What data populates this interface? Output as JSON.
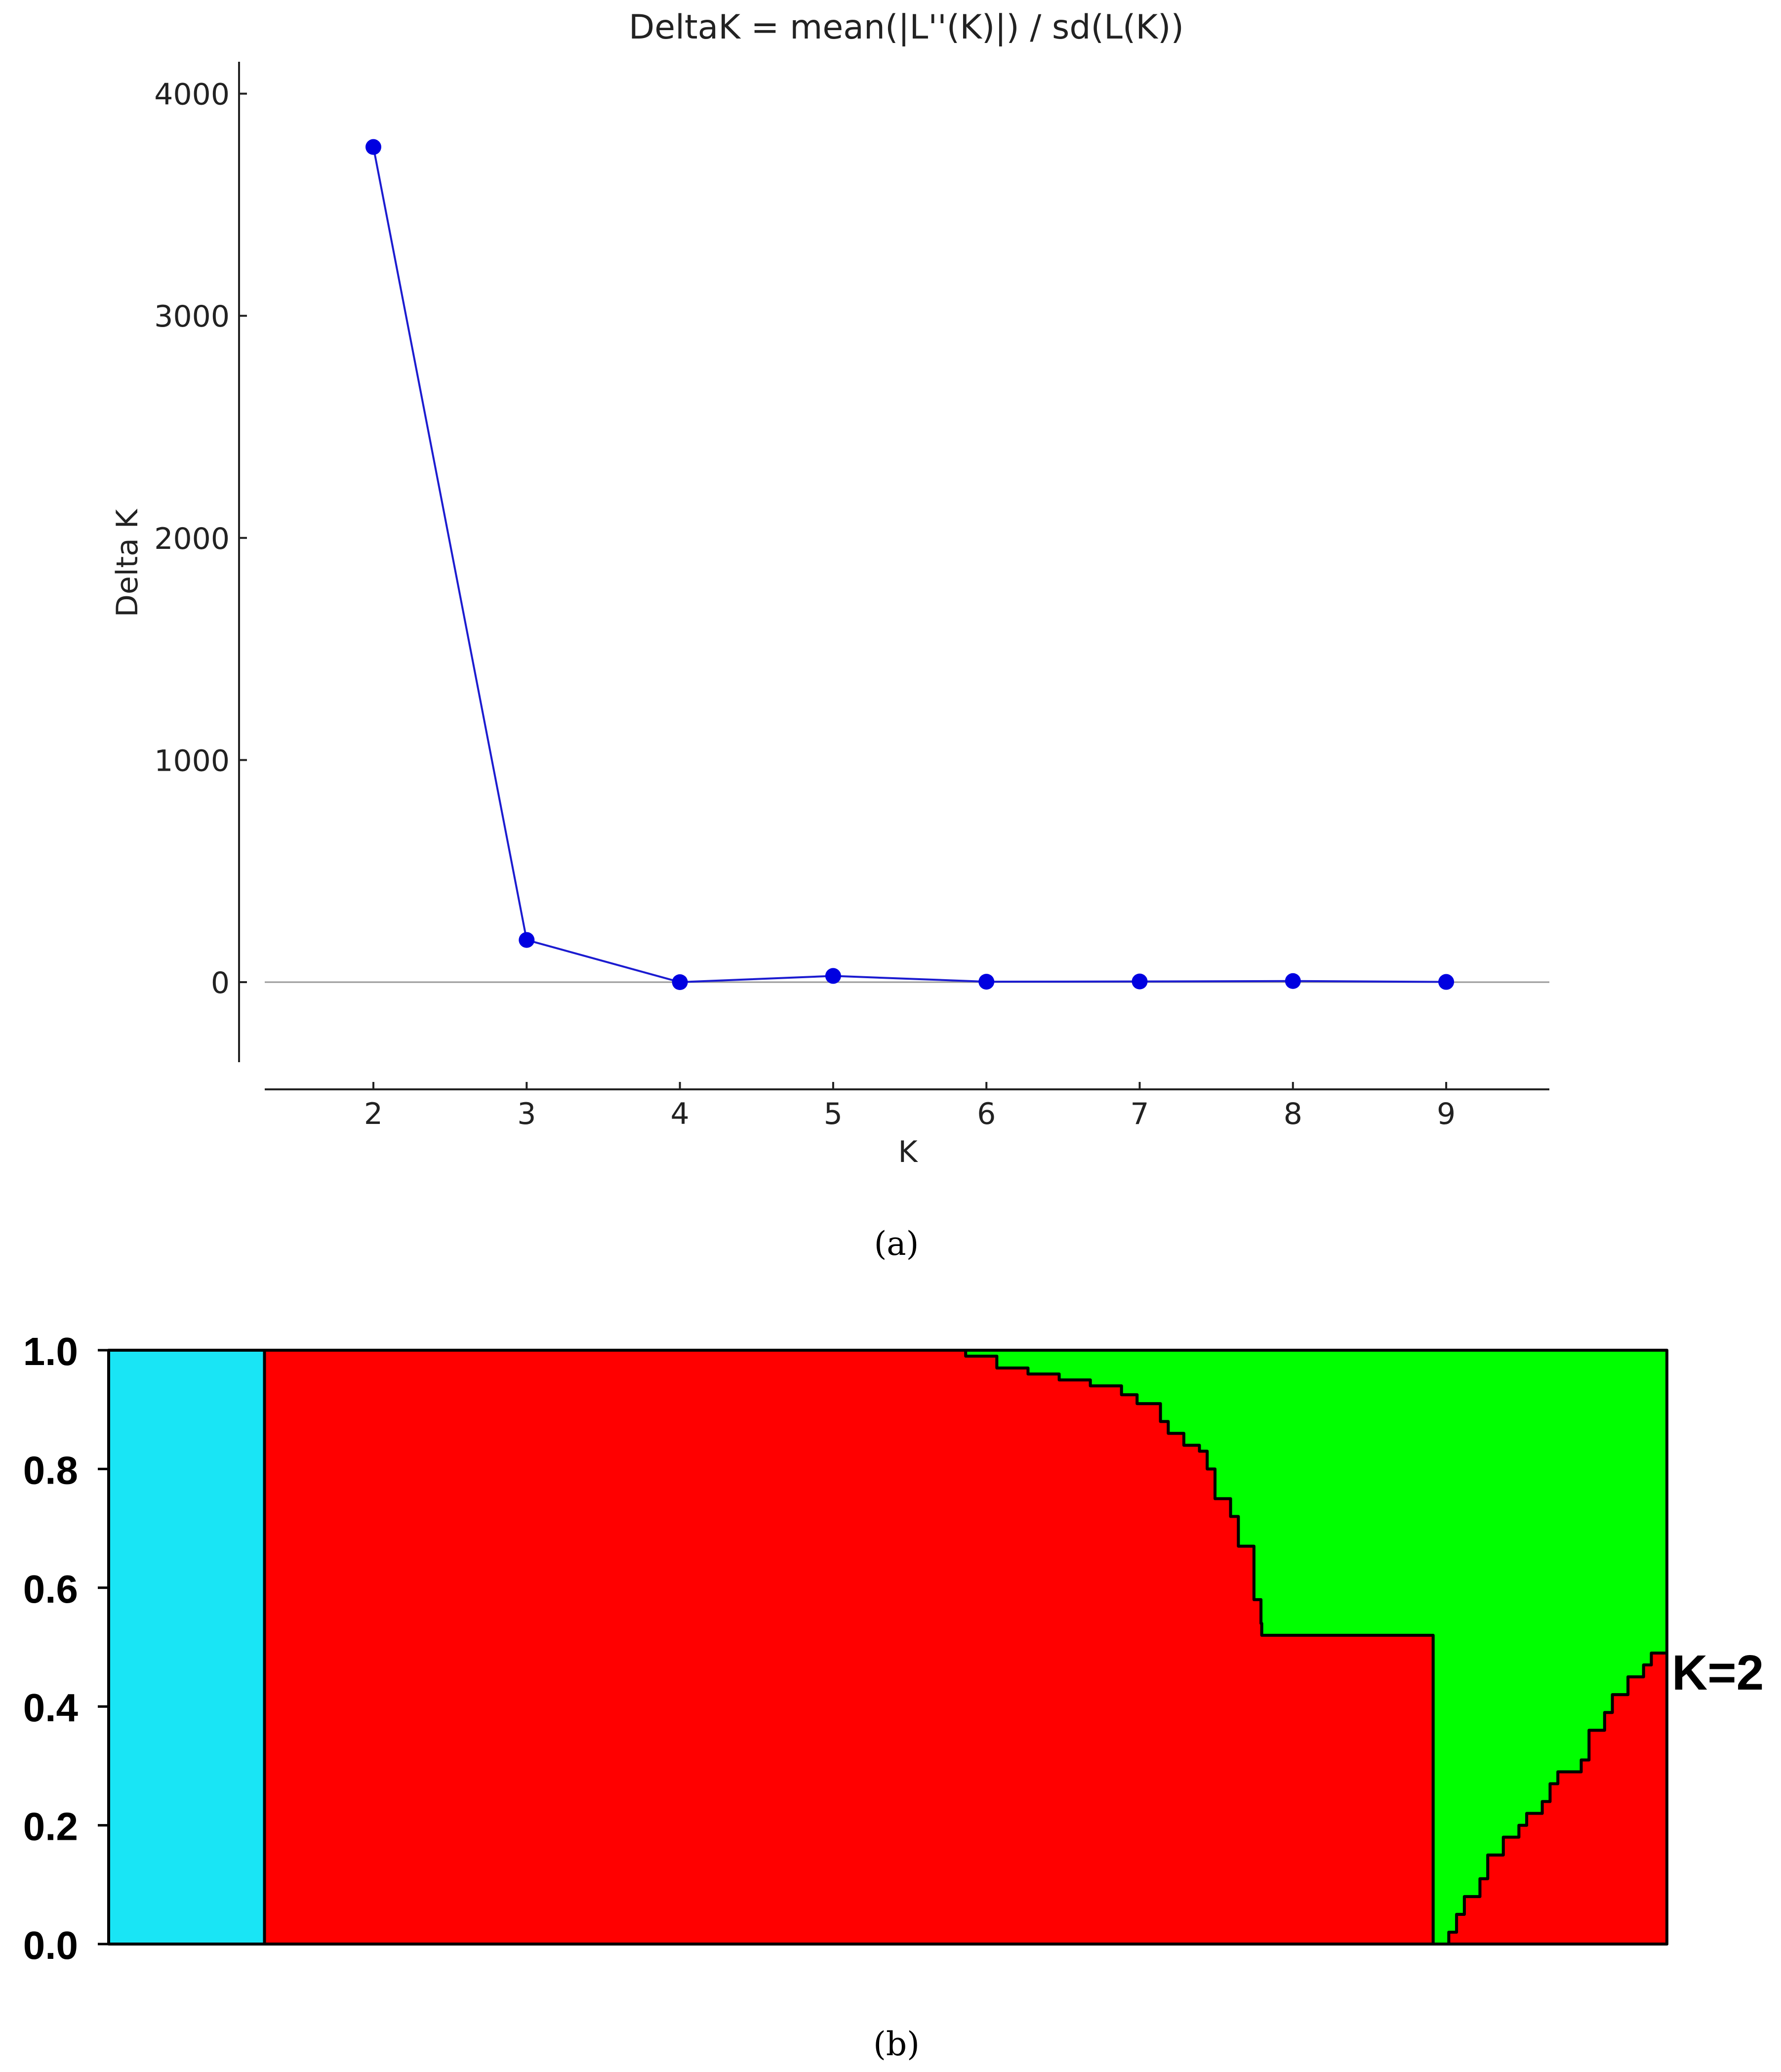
{
  "chart_data": [
    {
      "type": "line",
      "title": "DeltaK = mean(|L''(K)|) / sd(L(K))",
      "xlabel": "K",
      "ylabel": "Delta K",
      "x": [
        2,
        3,
        4,
        5,
        6,
        7,
        8,
        9
      ],
      "y": [
        3760,
        190,
        0,
        28,
        2,
        3,
        5,
        1
      ],
      "xlim": [
        1.3,
        10.0
      ],
      "ylim": [
        -370,
        4150
      ],
      "yticks": [
        "4000",
        "3000",
        "2000",
        "1000",
        "0"
      ],
      "xticks": [
        "2",
        "3",
        "4",
        "5",
        "6",
        "7",
        "8",
        "9"
      ],
      "line_color": "#1c1cd0",
      "marker_color": "#0000e0",
      "zero_line": true,
      "caption": "(a)"
    },
    {
      "type": "area",
      "title": "",
      "annotation": "K=2",
      "yticks": [
        "1.0",
        "0.8",
        "0.6",
        "0.4",
        "0.2",
        "0.0"
      ],
      "ylim": [
        0,
        1
      ],
      "x": [
        0.0,
        0.012,
        0.1,
        0.2,
        0.3,
        0.4,
        0.45,
        0.5,
        0.51,
        0.53,
        0.55,
        0.57,
        0.59,
        0.61,
        0.63,
        0.65,
        0.66,
        0.675,
        0.68,
        0.69,
        0.7,
        0.705,
        0.71,
        0.72,
        0.725,
        0.735,
        0.7395,
        0.74,
        0.85,
        0.86,
        0.865,
        0.87,
        0.88,
        0.885,
        0.895,
        0.905,
        0.91,
        0.92,
        0.925,
        0.93,
        0.945,
        0.95,
        0.96,
        0.965,
        0.975,
        0.985,
        0.99,
        1.0
      ],
      "series": [
        {
          "color": "#19e5f5",
          "values": [
            1.0,
            1.0,
            0,
            0,
            0,
            0,
            0,
            0,
            0,
            0,
            0,
            0,
            0,
            0,
            0,
            0,
            0,
            0,
            0,
            0,
            0,
            0,
            0,
            0,
            0,
            0,
            0,
            0,
            0,
            0,
            0,
            0,
            0,
            0,
            0,
            0,
            0,
            0,
            0,
            0,
            0,
            0,
            0,
            0,
            0,
            0,
            0,
            0
          ]
        },
        {
          "color": "#ff0000",
          "values": [
            0,
            0,
            1.0,
            1.0,
            1.0,
            1.0,
            1.0,
            1.0,
            1.0,
            1.0,
            0.99,
            0.97,
            0.96,
            0.95,
            0.94,
            0.925,
            0.91,
            0.88,
            0.86,
            0.84,
            0.83,
            0.8,
            0.75,
            0.72,
            0.67,
            0.58,
            0.54,
            0.52,
            0.0,
            0.02,
            0.05,
            0.08,
            0.11,
            0.15,
            0.18,
            0.2,
            0.22,
            0.24,
            0.27,
            0.29,
            0.31,
            0.36,
            0.39,
            0.42,
            0.45,
            0.47,
            0.49,
            0.52
          ]
        },
        {
          "color": "#00ff00",
          "values": [
            0,
            0,
            0.0,
            0.0,
            0.0,
            0.0,
            0.0,
            0.0,
            0.0,
            0.0,
            0.01,
            0.03,
            0.04,
            0.05,
            0.06,
            0.075,
            0.09,
            0.12,
            0.14,
            0.16,
            0.17,
            0.2,
            0.25,
            0.28,
            0.33,
            0.42,
            0.46,
            0.48,
            1.0,
            0.98,
            0.95,
            0.92,
            0.89,
            0.85,
            0.82,
            0.8,
            0.78,
            0.76,
            0.73,
            0.71,
            0.69,
            0.64,
            0.61,
            0.58,
            0.55,
            0.53,
            0.51,
            0.48
          ]
        }
      ],
      "caption": "(b)"
    }
  ]
}
